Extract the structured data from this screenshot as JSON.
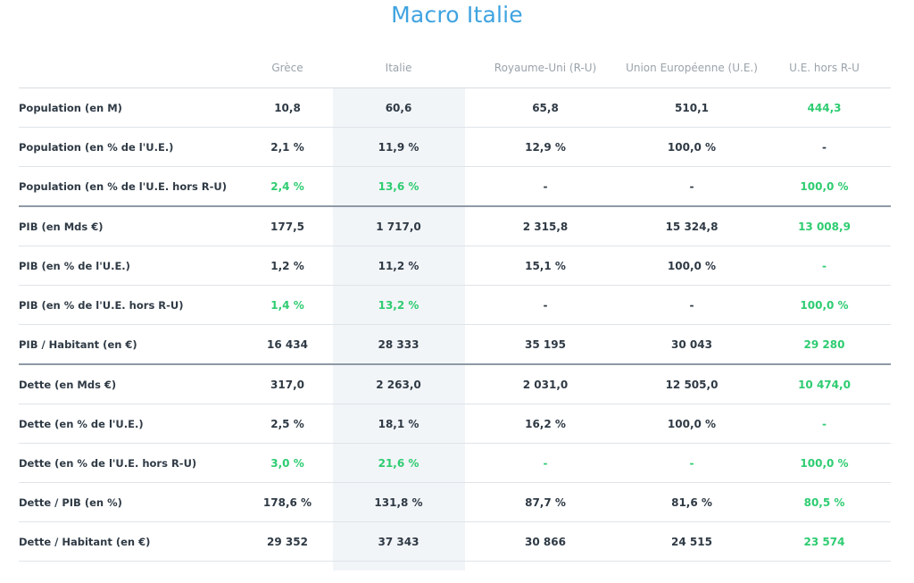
{
  "page": {
    "title": "Macro Italie"
  },
  "table": {
    "headers": [
      "",
      "Grèce",
      "Italie",
      "Royaume-Uni (R-U)",
      "Union Européenne (U.E.)",
      "U.E. hors R-U"
    ],
    "colors": {
      "green": "#2ecc71",
      "title": "#3fa3e0",
      "highlight_col": "#f2f5f8"
    },
    "rows": [
      {
        "label": "Population (en M)",
        "values": [
          "10,8",
          "60,6",
          "65,8",
          "510,1",
          "444,3"
        ],
        "green": [
          false,
          false,
          false,
          false,
          true
        ],
        "section_end": false
      },
      {
        "label": "Population (en % de l'U.E.)",
        "values": [
          "2,1 %",
          "11,9 %",
          "12,9 %",
          "100,0 %",
          "-"
        ],
        "green": [
          false,
          false,
          false,
          false,
          false
        ],
        "section_end": false
      },
      {
        "label": "Population (en % de l'U.E. hors R-U)",
        "values": [
          "2,4 %",
          "13,6 %",
          "-",
          "-",
          "100,0 %"
        ],
        "green": [
          true,
          true,
          false,
          false,
          true
        ],
        "section_end": true
      },
      {
        "label": "PIB (en Mds €)",
        "values": [
          "177,5",
          "1 717,0",
          "2 315,8",
          "15 324,8",
          "13 008,9"
        ],
        "green": [
          false,
          false,
          false,
          false,
          true
        ],
        "section_end": false
      },
      {
        "label": "PIB (en % de l'U.E.)",
        "values": [
          "1,2 %",
          "11,2 %",
          "15,1 %",
          "100,0 %",
          "-"
        ],
        "green": [
          false,
          false,
          false,
          false,
          true
        ],
        "section_end": false
      },
      {
        "label": "PIB (en % de l'U.E. hors R-U)",
        "values": [
          "1,4 %",
          "13,2 %",
          "-",
          "-",
          "100,0 %"
        ],
        "green": [
          true,
          true,
          false,
          false,
          true
        ],
        "section_end": false
      },
      {
        "label": "PIB / Habitant (en €)",
        "values": [
          "16 434",
          "28 333",
          "35 195",
          "30 043",
          "29 280"
        ],
        "green": [
          false,
          false,
          false,
          false,
          true
        ],
        "section_end": true
      },
      {
        "label": "Dette (en Mds €)",
        "values": [
          "317,0",
          "2 263,0",
          "2 031,0",
          "12 505,0",
          "10 474,0"
        ],
        "green": [
          false,
          false,
          false,
          false,
          true
        ],
        "section_end": false
      },
      {
        "label": "Dette (en % de l'U.E.)",
        "values": [
          "2,5 %",
          "18,1 %",
          "16,2 %",
          "100,0 %",
          "-"
        ],
        "green": [
          false,
          false,
          false,
          false,
          true
        ],
        "section_end": false
      },
      {
        "label": "Dette (en % de l'U.E. hors R-U)",
        "values": [
          "3,0 %",
          "21,6 %",
          "-",
          "-",
          "100,0 %"
        ],
        "green": [
          true,
          true,
          true,
          true,
          true
        ],
        "section_end": false
      },
      {
        "label": "Dette / PIB (en %)",
        "values": [
          "178,6 %",
          "131,8 %",
          "87,7 %",
          "81,6 %",
          "80,5 %"
        ],
        "green": [
          false,
          false,
          false,
          false,
          true
        ],
        "section_end": false
      },
      {
        "label": "Dette / Habitant (en €)",
        "values": [
          "29 352",
          "37 343",
          "30 866",
          "24 515",
          "23 574"
        ],
        "green": [
          false,
          false,
          false,
          false,
          true
        ],
        "section_end": false
      }
    ]
  }
}
